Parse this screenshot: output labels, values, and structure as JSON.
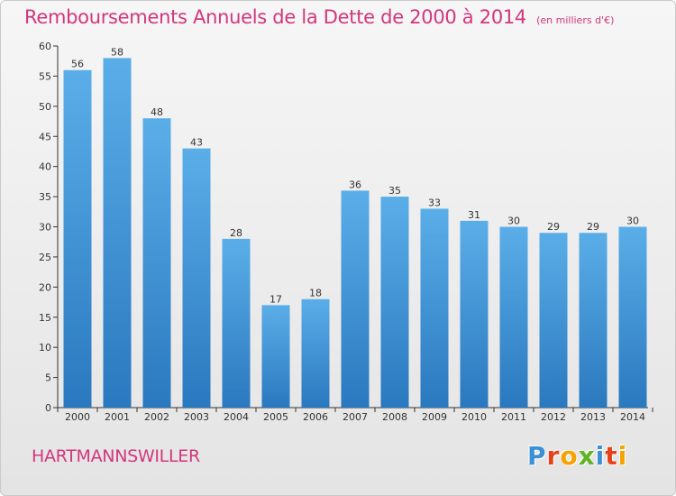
{
  "chart_data": {
    "type": "bar",
    "title": "Remboursements Annuels de la Dette de 2000 à 2014",
    "subtitle": "(en milliers d'€)",
    "categories": [
      "2000",
      "2001",
      "2002",
      "2003",
      "2004",
      "2005",
      "2006",
      "2007",
      "2008",
      "2009",
      "2010",
      "2011",
      "2012",
      "2013",
      "2014"
    ],
    "values": [
      56,
      58,
      48,
      43,
      28,
      17,
      18,
      36,
      35,
      33,
      31,
      30,
      29,
      29,
      30
    ],
    "data_labels": [
      "56",
      "58",
      "48",
      "43",
      "28",
      "17",
      "18",
      "36",
      "35",
      "33",
      "31",
      "30",
      "29",
      "29",
      "30"
    ],
    "ylim": [
      0,
      60
    ],
    "yticks": [
      0,
      5,
      10,
      15,
      20,
      25,
      30,
      35,
      40,
      45,
      50,
      55,
      60
    ],
    "xlabel": "",
    "ylabel": "",
    "grid": false,
    "legend": "none",
    "bar_color_top": "#5aaee8",
    "bar_color_bottom": "#2a78bf"
  },
  "footer": {
    "commune": "HARTMANNSWILLER"
  },
  "logo": {
    "text": "Proxiti",
    "letters": [
      {
        "char": "P",
        "color": "#3a8fd6"
      },
      {
        "char": "r",
        "color": "#e8401c"
      },
      {
        "char": "o",
        "color": "#f4a300"
      },
      {
        "char": "x",
        "color": "#5fb324"
      },
      {
        "char": "i",
        "color": "#3a8fd6"
      },
      {
        "char": "t",
        "color": "#e8401c"
      },
      {
        "char": "i",
        "color": "#f4a300"
      }
    ]
  },
  "colors": {
    "title": "#d2377d",
    "axis": "#333333"
  }
}
